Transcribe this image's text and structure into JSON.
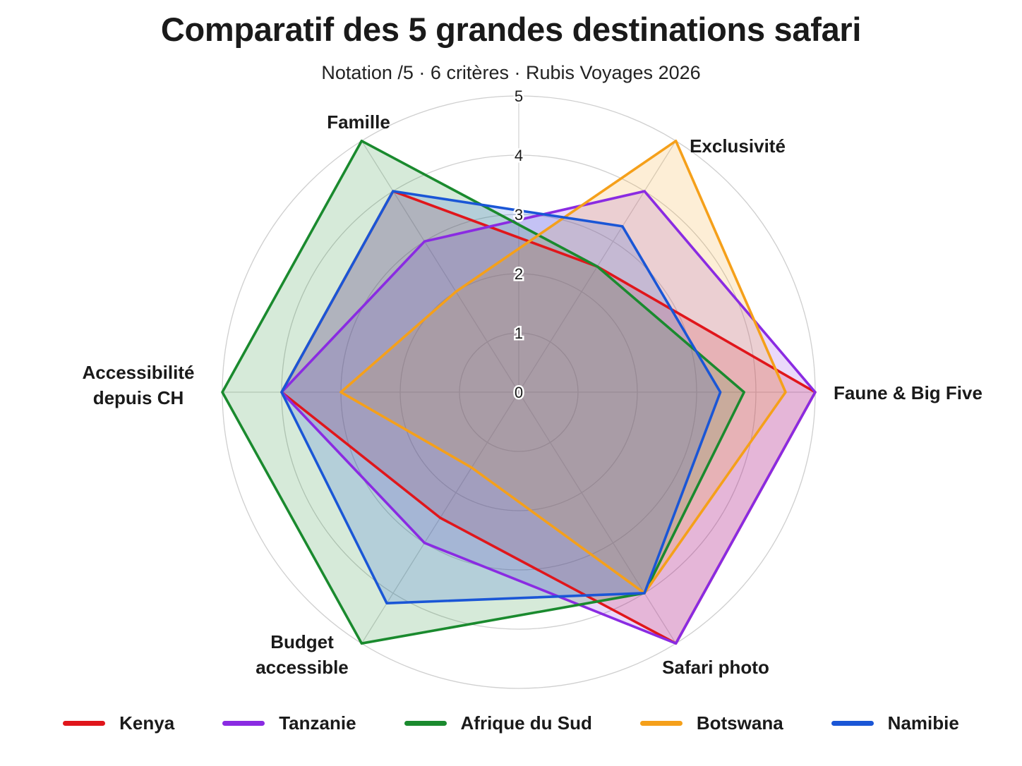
{
  "title": "Comparatif des 5 grandes destinations safari",
  "subtitle": "Notation /5 · 6 critères · Rubis Voyages 2026",
  "chart_data": {
    "type": "radar",
    "scale": [
      0,
      5
    ],
    "ticks": [
      "0",
      "1",
      "2",
      "3",
      "4",
      "5"
    ],
    "axes": [
      {
        "label": [
          "Faune & Big Five"
        ]
      },
      {
        "label": [
          "Exclusivité"
        ]
      },
      {
        "label": [
          "Famille"
        ]
      },
      {
        "label": [
          "Accessibilité",
          "depuis CH"
        ]
      },
      {
        "label": [
          "Budget",
          "accessible"
        ]
      },
      {
        "label": [
          "Safari photo"
        ]
      }
    ],
    "series": [
      {
        "name": "Kenya",
        "color": "#e0161b",
        "values": [
          5,
          2.5,
          4,
          4,
          2.5,
          5
        ]
      },
      {
        "name": "Tanzanie",
        "color": "#8a2be2",
        "values": [
          5,
          4,
          3,
          4,
          3,
          5
        ]
      },
      {
        "name": "Afrique du Sud",
        "color": "#1a8a2e",
        "values": [
          3.8,
          2.5,
          5,
          5,
          5,
          4
        ]
      },
      {
        "name": "Botswana",
        "color": "#f5a01a",
        "values": [
          4.5,
          5,
          2,
          3,
          1.5,
          4
        ]
      },
      {
        "name": "Namibie",
        "color": "#1a56d6",
        "values": [
          3.4,
          3.3,
          4,
          4,
          4.2,
          4
        ]
      }
    ],
    "legend_position": "bottom",
    "grid": true
  }
}
